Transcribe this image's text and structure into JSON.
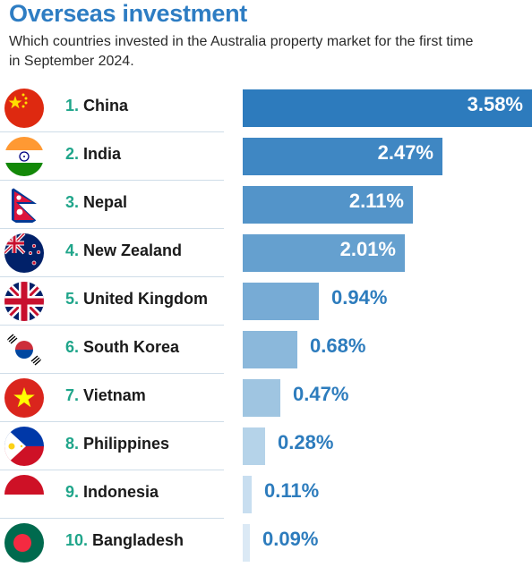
{
  "title": "Overseas investment",
  "subtitle": "Which countries invested in the Australia property market for the first time in September 2024.",
  "chart_data": {
    "type": "bar",
    "orientation": "horizontal",
    "title": "Overseas investment",
    "subtitle": "Which countries invested in the Australia property market for the first time in September 2024.",
    "xlabel": "",
    "ylabel": "",
    "xlim": [
      0,
      3.58
    ],
    "grid": false,
    "legend": "none",
    "unit": "%",
    "categories": [
      "China",
      "India",
      "Nepal",
      "New Zealand",
      "United Kingdom",
      "South Korea",
      "Vietnam",
      "Philippines",
      "Indonesia",
      "Bangladesh"
    ],
    "ranks": [
      "1.",
      "2.",
      "3.",
      "4.",
      "5.",
      "6.",
      "7.",
      "8.",
      "9.",
      "10."
    ],
    "values": [
      3.58,
      2.47,
      2.11,
      2.01,
      0.94,
      0.68,
      0.47,
      0.28,
      0.11,
      0.09
    ],
    "value_labels": [
      "3.58%",
      "2.47%",
      "2.11%",
      "2.01%",
      "0.94%",
      "0.68%",
      "0.47%",
      "0.28%",
      "0.11%",
      "0.09%"
    ],
    "flag_icons": [
      "china-flag-icon",
      "india-flag-icon",
      "nepal-flag-icon",
      "new-zealand-flag-icon",
      "united-kingdom-flag-icon",
      "south-korea-flag-icon",
      "vietnam-flag-icon",
      "philippines-flag-icon",
      "indonesia-flag-icon",
      "bangladesh-flag-icon"
    ],
    "bar_colors": [
      "#2d7bbd",
      "#3f87c3",
      "#5394c9",
      "#65a0cf",
      "#77abd5",
      "#8bb8db",
      "#9fc5e1",
      "#b5d3e9",
      "#c8def0",
      "#dbe9f5"
    ],
    "title_color": "#2e7dc3",
    "rank_color": "#1fa58a",
    "outside_label_color": "#2d7cbd"
  }
}
